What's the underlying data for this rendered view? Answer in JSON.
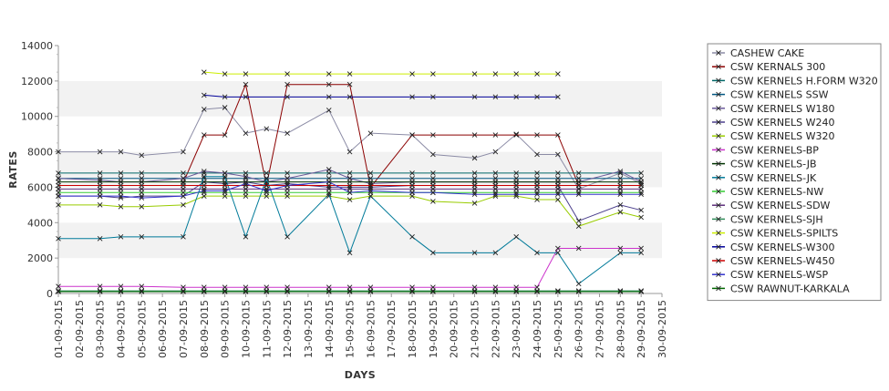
{
  "chart_data": {
    "type": "line",
    "xlabel": "DAYS",
    "ylabel": "RATES",
    "ylim": [
      0,
      14000
    ],
    "y_ticks": [
      0,
      2000,
      4000,
      6000,
      8000,
      10000,
      12000,
      14000
    ],
    "y_tick_labels": [
      "0",
      "2000",
      "4000",
      "6000",
      "8000",
      "10000",
      "12000",
      "14000"
    ],
    "grid": "horizontal bands",
    "legend_position": "right",
    "x_dates": [
      "01-09-2015",
      "02-09-2015",
      "03-09-2015",
      "04-09-2015",
      "05-09-2015",
      "06-09-2015",
      "07-09-2015",
      "08-09-2015",
      "09-09-2015",
      "10-09-2015",
      "11-09-2015",
      "12-09-2015",
      "13-09-2015",
      "14-09-2015",
      "15-09-2015",
      "16-09-2015",
      "17-09-2015",
      "18-09-2015",
      "19-09-2015",
      "20-09-2015",
      "21-09-2015",
      "22-09-2015",
      "23-09-2015",
      "24-09-2015",
      "25-09-2015",
      "26-09-2015",
      "27-09-2015",
      "28-09-2015",
      "29-09-2015",
      "30-09-2015"
    ],
    "series": [
      {
        "name": "CASHEW CAKE",
        "color": "#8c8ca6",
        "x": [
          "01-09-2015",
          "03-09-2015",
          "04-09-2015",
          "05-09-2015",
          "07-09-2015",
          "08-09-2015",
          "09-09-2015",
          "10-09-2015",
          "11-09-2015",
          "12-09-2015",
          "14-09-2015",
          "15-09-2015",
          "16-09-2015",
          "18-09-2015",
          "19-09-2015",
          "21-09-2015",
          "22-09-2015",
          "23-09-2015",
          "24-09-2015",
          "25-09-2015",
          "26-09-2015",
          "28-09-2015",
          "29-09-2015"
        ],
        "y": [
          8000,
          8000,
          8000,
          7800,
          8000,
          10400,
          10500,
          9050,
          9300,
          9050,
          10350,
          8000,
          9050,
          8950,
          7850,
          7650,
          8000,
          9000,
          7850,
          7850,
          5900,
          6800,
          6200
        ]
      },
      {
        "name": "CSW KERNALS 300",
        "color": "#8b0000",
        "x": [
          "07-09-2015",
          "08-09-2015",
          "09-09-2015",
          "10-09-2015",
          "11-09-2015",
          "12-09-2015",
          "14-09-2015",
          "15-09-2015",
          "16-09-2015",
          "18-09-2015",
          "19-09-2015",
          "21-09-2015",
          "22-09-2015",
          "23-09-2015",
          "24-09-2015",
          "25-09-2015",
          "26-09-2015",
          "28-09-2015",
          "29-09-2015"
        ],
        "y": [
          6250,
          8950,
          8950,
          11800,
          6100,
          11800,
          11800,
          11800,
          6000,
          8950,
          8950,
          8950,
          8950,
          8950,
          8950,
          8950,
          6100,
          6100,
          6100
        ]
      },
      {
        "name": "CSW KERNELS H.FORM W320",
        "color": "#006666",
        "x": [
          "01-09-2015",
          "03-09-2015",
          "04-09-2015",
          "05-09-2015",
          "07-09-2015",
          "08-09-2015",
          "09-09-2015",
          "10-09-2015",
          "11-09-2015",
          "12-09-2015",
          "14-09-2015",
          "15-09-2015",
          "16-09-2015",
          "18-09-2015",
          "19-09-2015",
          "21-09-2015",
          "22-09-2015",
          "23-09-2015",
          "24-09-2015",
          "25-09-2015",
          "26-09-2015",
          "28-09-2015",
          "29-09-2015"
        ],
        "y": [
          6800,
          6800,
          6800,
          6800,
          6800,
          6800,
          6800,
          6800,
          6800,
          6800,
          6800,
          6800,
          6800,
          6800,
          6800,
          6800,
          6800,
          6800,
          6800,
          6800,
          6800,
          6800,
          6800
        ]
      },
      {
        "name": "CSW KERNELS SSW",
        "color": "#005580",
        "x": [
          "01-09-2015",
          "03-09-2015",
          "04-09-2015",
          "05-09-2015",
          "07-09-2015",
          "08-09-2015",
          "09-09-2015",
          "10-09-2015",
          "11-09-2015",
          "12-09-2015",
          "14-09-2015",
          "15-09-2015",
          "16-09-2015",
          "18-09-2015",
          "19-09-2015",
          "21-09-2015",
          "22-09-2015",
          "23-09-2015",
          "24-09-2015",
          "25-09-2015",
          "26-09-2015",
          "28-09-2015",
          "29-09-2015"
        ],
        "y": [
          6500,
          6500,
          6500,
          6500,
          6500,
          6500,
          6500,
          6500,
          6500,
          6500,
          6500,
          6500,
          6500,
          6500,
          6500,
          6500,
          6500,
          6500,
          6500,
          6500,
          6500,
          6500,
          6500
        ]
      },
      {
        "name": "CSW KERNELS W180",
        "color": "#6a5a9a",
        "x": [
          "01-09-2015",
          "03-09-2015",
          "04-09-2015",
          "05-09-2015",
          "07-09-2015",
          "08-09-2015",
          "09-09-2015",
          "10-09-2015",
          "11-09-2015",
          "12-09-2015",
          "14-09-2015",
          "15-09-2015",
          "16-09-2015",
          "18-09-2015",
          "19-09-2015",
          "21-09-2015",
          "22-09-2015",
          "23-09-2015",
          "24-09-2015",
          "25-09-2015",
          "26-09-2015",
          "28-09-2015",
          "29-09-2015"
        ],
        "y": [
          6500,
          6400,
          6300,
          6300,
          6500,
          6900,
          6800,
          6600,
          6300,
          6500,
          7000,
          6500,
          6200,
          6300,
          6300,
          6300,
          6300,
          6300,
          6300,
          6300,
          6300,
          6900,
          6300
        ]
      },
      {
        "name": "CSW KERNELS W240",
        "color": "#4b3f8c",
        "x": [
          "01-09-2015",
          "03-09-2015",
          "04-09-2015",
          "05-09-2015",
          "07-09-2015",
          "08-09-2015",
          "09-09-2015",
          "10-09-2015",
          "11-09-2015",
          "12-09-2015",
          "14-09-2015",
          "15-09-2015",
          "16-09-2015",
          "18-09-2015",
          "19-09-2015",
          "21-09-2015",
          "22-09-2015",
          "23-09-2015",
          "24-09-2015",
          "25-09-2015",
          "26-09-2015",
          "28-09-2015",
          "29-09-2015"
        ],
        "y": [
          5500,
          5500,
          5400,
          5500,
          5500,
          6300,
          6200,
          6300,
          6100,
          6200,
          6000,
          6000,
          6000,
          6100,
          6100,
          6100,
          6100,
          6100,
          6100,
          6100,
          4100,
          5000,
          4700
        ]
      },
      {
        "name": "CSW KERNELS W320",
        "color": "#99cc00",
        "x": [
          "01-09-2015",
          "03-09-2015",
          "04-09-2015",
          "05-09-2015",
          "07-09-2015",
          "08-09-2015",
          "09-09-2015",
          "10-09-2015",
          "11-09-2015",
          "12-09-2015",
          "14-09-2015",
          "15-09-2015",
          "16-09-2015",
          "18-09-2015",
          "19-09-2015",
          "21-09-2015",
          "22-09-2015",
          "23-09-2015",
          "24-09-2015",
          "25-09-2015",
          "26-09-2015",
          "28-09-2015",
          "29-09-2015"
        ],
        "y": [
          5000,
          5000,
          4900,
          4900,
          5000,
          5500,
          5500,
          5500,
          5500,
          5500,
          5500,
          5300,
          5500,
          5500,
          5200,
          5100,
          5500,
          5500,
          5300,
          5300,
          3800,
          4600,
          4300
        ]
      },
      {
        "name": "CSW KERNELS-BP",
        "color": "#cc33cc",
        "x": [
          "01-09-2015",
          "03-09-2015",
          "04-09-2015",
          "05-09-2015",
          "07-09-2015",
          "08-09-2015",
          "09-09-2015",
          "10-09-2015",
          "11-09-2015",
          "12-09-2015",
          "14-09-2015",
          "15-09-2015",
          "16-09-2015",
          "18-09-2015",
          "19-09-2015",
          "21-09-2015",
          "22-09-2015",
          "23-09-2015",
          "24-09-2015",
          "25-09-2015",
          "26-09-2015",
          "28-09-2015",
          "29-09-2015"
        ],
        "y": [
          400,
          400,
          400,
          400,
          350,
          350,
          350,
          350,
          350,
          350,
          350,
          350,
          350,
          350,
          350,
          350,
          350,
          350,
          350,
          2550,
          2550,
          2550,
          2550
        ]
      },
      {
        "name": "CSW KERNELS-JB",
        "color": "#003300",
        "x": [
          "01-09-2015",
          "03-09-2015",
          "04-09-2015",
          "05-09-2015",
          "07-09-2015",
          "08-09-2015",
          "09-09-2015",
          "10-09-2015",
          "11-09-2015",
          "12-09-2015",
          "14-09-2015",
          "15-09-2015",
          "16-09-2015",
          "18-09-2015",
          "19-09-2015",
          "21-09-2015",
          "22-09-2015",
          "23-09-2015",
          "24-09-2015",
          "25-09-2015",
          "26-09-2015",
          "28-09-2015",
          "29-09-2015"
        ],
        "y": [
          6300,
          6300,
          6300,
          6300,
          6300,
          6300,
          6300,
          6300,
          6300,
          6300,
          6300,
          6300,
          6300,
          6300,
          6300,
          6300,
          6300,
          6300,
          6300,
          6300,
          6300,
          6300,
          6300
        ]
      },
      {
        "name": "CSW KERNELS-JK",
        "color": "#007a99",
        "x": [
          "01-09-2015",
          "03-09-2015",
          "04-09-2015",
          "05-09-2015",
          "07-09-2015",
          "08-09-2015",
          "09-09-2015",
          "10-09-2015",
          "11-09-2015",
          "12-09-2015",
          "14-09-2015",
          "15-09-2015",
          "16-09-2015",
          "18-09-2015",
          "19-09-2015",
          "21-09-2015",
          "22-09-2015",
          "23-09-2015",
          "24-09-2015",
          "25-09-2015",
          "26-09-2015",
          "28-09-2015",
          "29-09-2015"
        ],
        "y": [
          3100,
          3100,
          3200,
          3200,
          3200,
          6600,
          6600,
          3200,
          6500,
          3200,
          5600,
          2300,
          5500,
          3200,
          2300,
          2300,
          2300,
          3200,
          2300,
          2300,
          550,
          2300,
          2300
        ]
      },
      {
        "name": "CSW KERNELS-NW",
        "color": "#33cc33",
        "x": [
          "01-09-2015",
          "03-09-2015",
          "04-09-2015",
          "05-09-2015",
          "07-09-2015",
          "08-09-2015",
          "09-09-2015",
          "10-09-2015",
          "11-09-2015",
          "12-09-2015",
          "14-09-2015",
          "15-09-2015",
          "16-09-2015",
          "18-09-2015",
          "19-09-2015",
          "21-09-2015",
          "22-09-2015",
          "23-09-2015",
          "24-09-2015",
          "25-09-2015",
          "26-09-2015",
          "28-09-2015",
          "29-09-2015"
        ],
        "y": [
          5700,
          5700,
          5700,
          5700,
          5700,
          5700,
          5700,
          5700,
          5700,
          5700,
          5700,
          5700,
          5700,
          5700,
          5700,
          5700,
          5700,
          5700,
          5700,
          5700,
          5700,
          5700,
          5700
        ]
      },
      {
        "name": "CSW KERNELS-SDW",
        "color": "#5c2e7a",
        "x": [
          "01-09-2015",
          "03-09-2015",
          "04-09-2015",
          "05-09-2015",
          "07-09-2015",
          "08-09-2015",
          "09-09-2015",
          "10-09-2015",
          "11-09-2015",
          "12-09-2015",
          "14-09-2015",
          "15-09-2015",
          "16-09-2015",
          "18-09-2015",
          "19-09-2015",
          "21-09-2015",
          "22-09-2015",
          "23-09-2015",
          "24-09-2015",
          "25-09-2015",
          "26-09-2015",
          "28-09-2015",
          "29-09-2015"
        ],
        "y": [
          5900,
          5900,
          5900,
          5900,
          5900,
          5900,
          5900,
          5900,
          5900,
          5900,
          5900,
          5900,
          5900,
          5900,
          5900,
          5900,
          5900,
          5900,
          5900,
          5900,
          5900,
          5900,
          5900
        ]
      },
      {
        "name": "CSW KERNELS-SJH",
        "color": "#2e8b57",
        "x": [
          "01-09-2015",
          "03-09-2015",
          "04-09-2015",
          "05-09-2015",
          "07-09-2015",
          "08-09-2015",
          "09-09-2015",
          "10-09-2015",
          "11-09-2015",
          "12-09-2015",
          "14-09-2015",
          "15-09-2015",
          "16-09-2015",
          "18-09-2015",
          "19-09-2015",
          "21-09-2015",
          "22-09-2015",
          "23-09-2015",
          "24-09-2015",
          "25-09-2015",
          "26-09-2015",
          "28-09-2015",
          "29-09-2015"
        ],
        "y": [
          150,
          150,
          150,
          150,
          150,
          150,
          150,
          150,
          150,
          150,
          150,
          150,
          150,
          150,
          150,
          150,
          150,
          150,
          150,
          150,
          150,
          150,
          150
        ]
      },
      {
        "name": "CSW KERNELS-SPILTS",
        "color": "#ccee00",
        "x": [
          "08-09-2015",
          "09-09-2015",
          "10-09-2015",
          "12-09-2015",
          "14-09-2015",
          "15-09-2015",
          "18-09-2015",
          "19-09-2015",
          "21-09-2015",
          "22-09-2015",
          "23-09-2015",
          "24-09-2015",
          "25-09-2015"
        ],
        "y": [
          12500,
          12400,
          12400,
          12400,
          12400,
          12400,
          12400,
          12400,
          12400,
          12400,
          12400,
          12400,
          12400
        ]
      },
      {
        "name": "CSW KERNELS-W300",
        "color": "#000099",
        "x": [
          "08-09-2015",
          "09-09-2015",
          "10-09-2015",
          "12-09-2015",
          "14-09-2015",
          "15-09-2015",
          "18-09-2015",
          "19-09-2015",
          "21-09-2015",
          "22-09-2015",
          "23-09-2015",
          "24-09-2015",
          "25-09-2015"
        ],
        "y": [
          11200,
          11100,
          11100,
          11100,
          11100,
          11100,
          11100,
          11100,
          11100,
          11100,
          11100,
          11100,
          11100
        ]
      },
      {
        "name": "CSW KERNELS-W450",
        "color": "#cc0000",
        "x": [
          "01-09-2015",
          "03-09-2015",
          "04-09-2015",
          "05-09-2015",
          "07-09-2015",
          "08-09-2015",
          "09-09-2015",
          "10-09-2015",
          "11-09-2015",
          "12-09-2015",
          "14-09-2015",
          "15-09-2015",
          "16-09-2015",
          "18-09-2015",
          "19-09-2015",
          "21-09-2015",
          "22-09-2015",
          "23-09-2015",
          "24-09-2015",
          "25-09-2015",
          "26-09-2015",
          "28-09-2015",
          "29-09-2015"
        ],
        "y": [
          6100,
          6100,
          6100,
          6100,
          6100,
          6100,
          6100,
          6100,
          6100,
          6100,
          6100,
          6100,
          6100,
          6100,
          6100,
          6100,
          6100,
          6100,
          6100,
          6100,
          6100,
          6100,
          6100
        ]
      },
      {
        "name": "CSW KERNELS-WSP",
        "color": "#3333cc",
        "x": [
          "01-09-2015",
          "03-09-2015",
          "04-09-2015",
          "05-09-2015",
          "07-09-2015",
          "08-09-2015",
          "09-09-2015",
          "10-09-2015",
          "11-09-2015",
          "12-09-2015",
          "14-09-2015",
          "15-09-2015",
          "16-09-2015",
          "18-09-2015",
          "19-09-2015",
          "21-09-2015",
          "22-09-2015",
          "23-09-2015",
          "24-09-2015",
          "25-09-2015",
          "26-09-2015",
          "28-09-2015",
          "29-09-2015"
        ],
        "y": [
          5500,
          5500,
          5500,
          5400,
          5500,
          5800,
          5800,
          6200,
          5800,
          6100,
          6300,
          5700,
          5800,
          5700,
          5700,
          5600,
          5600,
          5600,
          5600,
          5600,
          5600,
          5600,
          5600
        ]
      },
      {
        "name": "CSW RAWNUT-KARKALA",
        "color": "#006600",
        "x": [
          "01-09-2015",
          "03-09-2015",
          "04-09-2015",
          "05-09-2015",
          "07-09-2015",
          "08-09-2015",
          "09-09-2015",
          "10-09-2015",
          "11-09-2015",
          "12-09-2015",
          "14-09-2015",
          "15-09-2015",
          "16-09-2015",
          "18-09-2015",
          "19-09-2015",
          "21-09-2015",
          "22-09-2015",
          "23-09-2015",
          "24-09-2015",
          "25-09-2015",
          "26-09-2015",
          "28-09-2015",
          "29-09-2015"
        ],
        "y": [
          100,
          100,
          100,
          100,
          100,
          100,
          100,
          100,
          100,
          100,
          100,
          100,
          100,
          100,
          100,
          100,
          100,
          100,
          100,
          100,
          100,
          100,
          100
        ]
      }
    ]
  }
}
